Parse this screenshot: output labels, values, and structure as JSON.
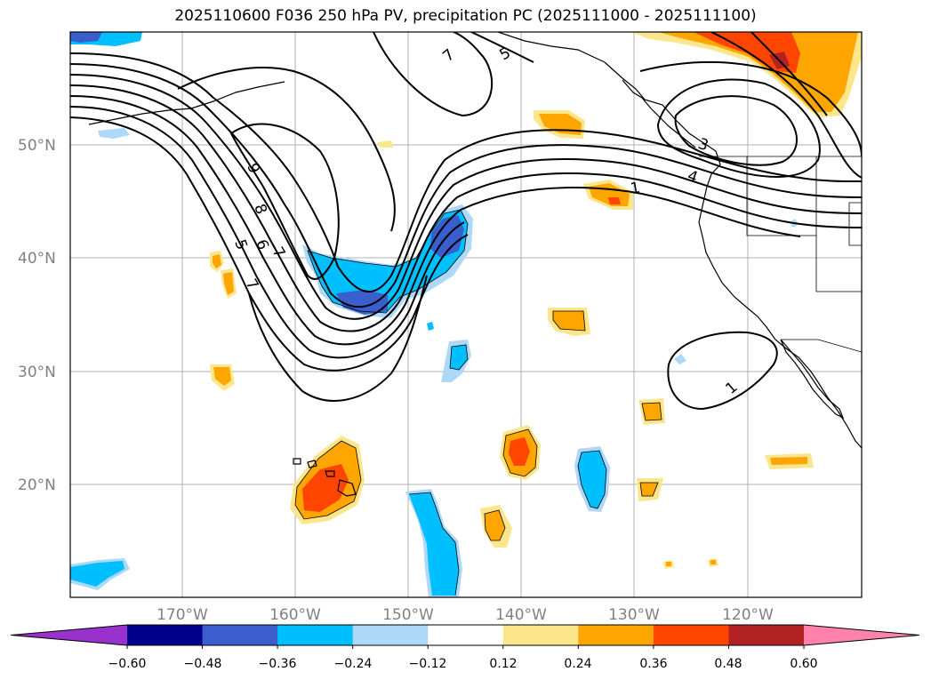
{
  "title": "2025110600 F036 250 hPa PV, precipitation PC (2025111000 - 2025111100)",
  "latitude_labels": [
    "50°N",
    "40°N",
    "30°N",
    "20°N"
  ],
  "longitude_labels": [
    "170°W",
    "160°W",
    "150°W",
    "140°W",
    "130°W",
    "120°W"
  ],
  "colorbar": {
    "ticks": [
      "−0.60",
      "−0.48",
      "−0.36",
      "−0.24",
      "−0.12",
      "0.12",
      "0.24",
      "0.36",
      "0.48",
      "0.60"
    ],
    "colors": [
      "#9932cc",
      "#00008b",
      "#3a5fcd",
      "#00bfff",
      "#add8f8",
      "#ffffff",
      "#fce68c",
      "#ffa500",
      "#ff4500",
      "#b22222",
      "#ff82ab"
    ]
  },
  "contour_labels": [
    "9",
    "8",
    "5",
    "6",
    "7",
    "7",
    "5",
    "7",
    "3",
    "4",
    "1",
    "1"
  ]
}
